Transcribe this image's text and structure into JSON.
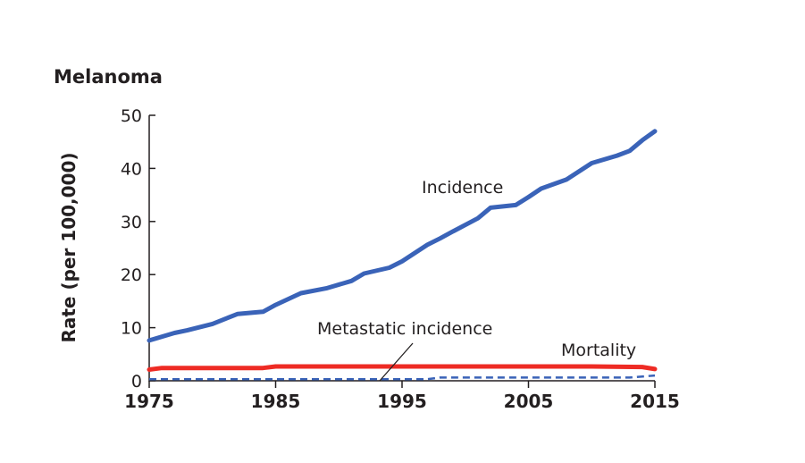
{
  "chart_data": {
    "type": "line",
    "title": "Melanoma",
    "xlabel": "",
    "ylabel": "Rate (per 100,000)",
    "xlim": [
      1975,
      2015
    ],
    "ylim": [
      0,
      50
    ],
    "xticks": [
      "1975",
      "1985",
      "1995",
      "2005",
      "2015"
    ],
    "yticks": [
      "0",
      "10",
      "20",
      "30",
      "40",
      "50"
    ],
    "grid": false,
    "colors": {
      "incidence": "#3a63b8",
      "mortality": "#ee2b24",
      "metastatic": "#3a63b8"
    },
    "series": [
      {
        "name": "Incidence",
        "style": "solid",
        "x": [
          1975,
          1977,
          1978,
          1980,
          1982,
          1984,
          1985,
          1987,
          1989,
          1991,
          1992,
          1994,
          1995,
          1997,
          1998,
          1999,
          2001,
          2002,
          2004,
          2005,
          2006,
          2008,
          2010,
          2012,
          2013,
          2014,
          2015
        ],
        "y": [
          7.6,
          9.0,
          9.5,
          10.7,
          12.6,
          13.0,
          14.3,
          16.5,
          17.4,
          18.8,
          20.2,
          21.3,
          22.5,
          25.6,
          26.8,
          28.1,
          30.6,
          32.6,
          33.1,
          34.6,
          36.2,
          37.9,
          41.0,
          42.4,
          43.3,
          45.3,
          47.0
        ]
      },
      {
        "name": "Mortality",
        "style": "solid",
        "x": [
          1975,
          1976,
          1984,
          1985,
          2010,
          2014,
          2015
        ],
        "y": [
          2.1,
          2.4,
          2.4,
          2.7,
          2.7,
          2.6,
          2.2
        ]
      },
      {
        "name": "Metastatic incidence",
        "style": "dashed",
        "x": [
          1975,
          1997,
          1998,
          2013,
          2015
        ],
        "y": [
          0.3,
          0.3,
          0.6,
          0.6,
          1.0
        ]
      }
    ],
    "annotations": [
      "Incidence",
      "Metastatic incidence",
      "Mortality"
    ]
  }
}
